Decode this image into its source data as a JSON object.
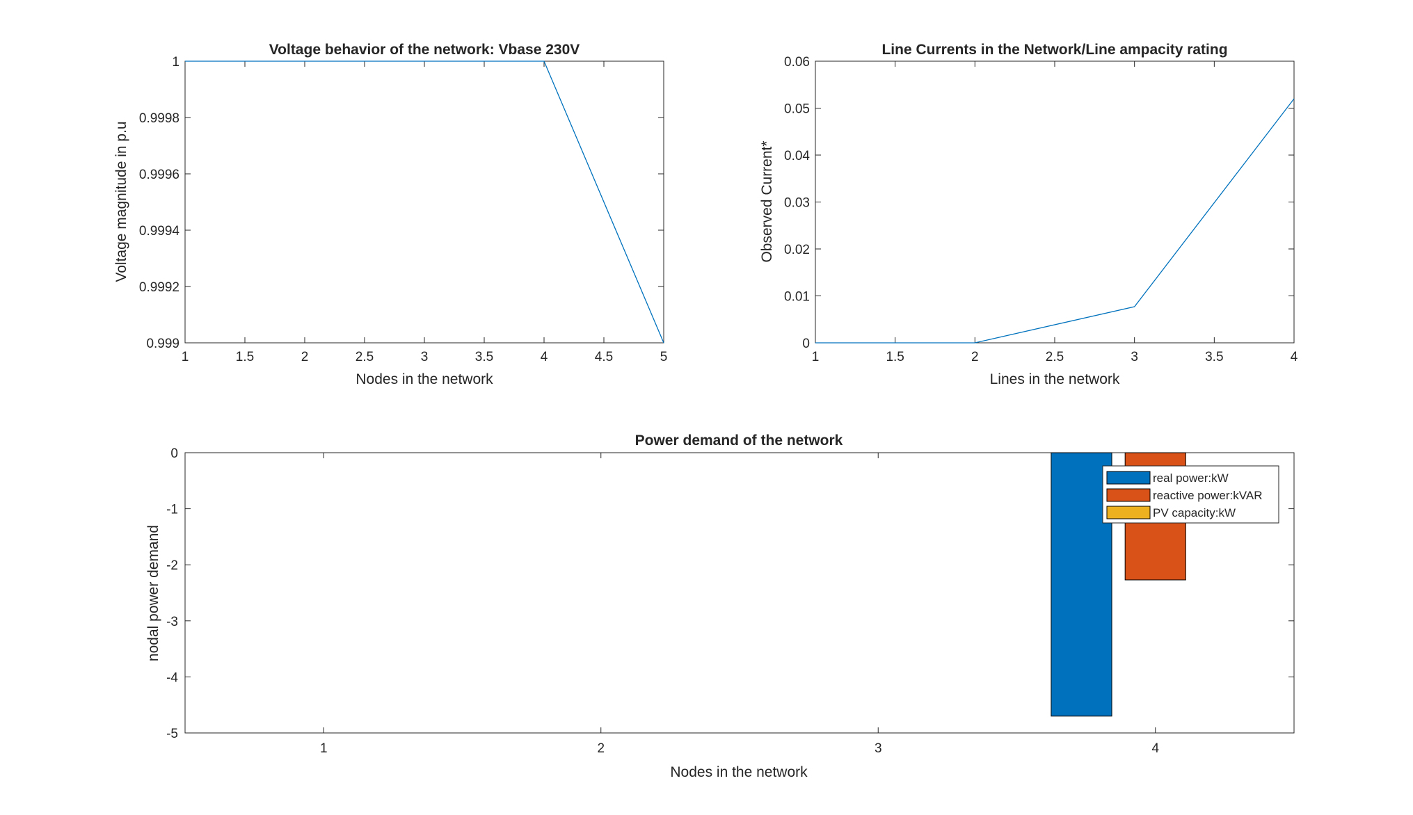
{
  "chart_data": [
    {
      "type": "line",
      "title": "Voltage behavior of the network: Vbase 230V",
      "xlabel": "Nodes in the network",
      "ylabel": "Voltage magnitude in p.u",
      "xlim": [
        1,
        5
      ],
      "ylim": [
        0.999,
        1
      ],
      "xticks": [
        1,
        1.5,
        2,
        2.5,
        3,
        3.5,
        4,
        4.5,
        5
      ],
      "xtick_labels": [
        "1",
        "1.5",
        "2",
        "2.5",
        "3",
        "3.5",
        "4",
        "4.5",
        "5"
      ],
      "yticks": [
        0.999,
        0.9992,
        0.9994,
        0.9996,
        0.9998,
        1
      ],
      "ytick_labels": [
        "0.999",
        "0.9992",
        "0.9994",
        "0.9996",
        "0.9998",
        "1"
      ],
      "grid": false,
      "color": "#0072bd",
      "x": [
        1,
        2,
        3,
        4,
        5
      ],
      "y": [
        1,
        1,
        1,
        1,
        0.999
      ]
    },
    {
      "type": "line",
      "title": "Line Currents in the Network/Line ampacity rating",
      "xlabel": "Lines in the network",
      "ylabel": "Observed Current*",
      "xlim": [
        1,
        4
      ],
      "ylim": [
        0,
        0.06
      ],
      "xticks": [
        1,
        1.5,
        2,
        2.5,
        3,
        3.5,
        4
      ],
      "xtick_labels": [
        "1",
        "1.5",
        "2",
        "2.5",
        "3",
        "3.5",
        "4"
      ],
      "yticks": [
        0,
        0.01,
        0.02,
        0.03,
        0.04,
        0.05,
        0.06
      ],
      "ytick_labels": [
        "0",
        "0.01",
        "0.02",
        "0.03",
        "0.04",
        "0.05",
        "0.06"
      ],
      "grid": false,
      "color": "#0072bd",
      "x": [
        1,
        2,
        3,
        4
      ],
      "y": [
        0,
        0,
        0.0077,
        0.052
      ]
    },
    {
      "type": "bar",
      "title": "Power demand of the network",
      "xlabel": "Nodes in the network",
      "ylabel": "nodal power demand",
      "xlim": [
        0.5,
        4.5
      ],
      "ylim": [
        -5,
        0
      ],
      "categories": [
        "1",
        "2",
        "3",
        "4"
      ],
      "yticks": [
        -5,
        -4,
        -3,
        -2,
        -1,
        0
      ],
      "ytick_labels": [
        "-5",
        "-4",
        "-3",
        "-2",
        "-1",
        "0"
      ],
      "grid": false,
      "legend_position": "top-right",
      "series": [
        {
          "name": "real power:kW",
          "color": "#0072bd",
          "values": [
            0,
            0,
            0,
            -4.7
          ]
        },
        {
          "name": "reactive power:kVAR",
          "color": "#d95319",
          "values": [
            0,
            0,
            0,
            -2.27
          ]
        },
        {
          "name": "PV capacity:kW",
          "color": "#edb120",
          "values": [
            0,
            0,
            0,
            0
          ]
        }
      ]
    }
  ]
}
